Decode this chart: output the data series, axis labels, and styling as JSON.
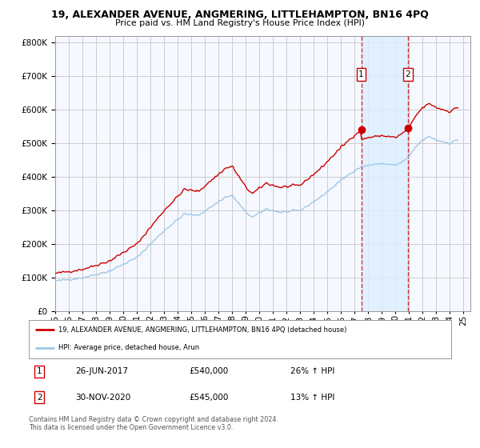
{
  "title": "19, ALEXANDER AVENUE, ANGMERING, LITTLEHAMPTON, BN16 4PQ",
  "subtitle": "Price paid vs. HM Land Registry's House Price Index (HPI)",
  "ylim": [
    0,
    820000
  ],
  "xlim_start": 1995.0,
  "xlim_end": 2025.5,
  "hpi_color": "#9ec8e8",
  "price_color": "#cc0000",
  "vline_color": "#cc0000",
  "vline_style": "--",
  "marker_color": "#cc0000",
  "sale1_x": 2017.48,
  "sale1_y": 540000,
  "sale1_label": "1",
  "sale2_x": 2020.91,
  "sale2_y": 545000,
  "sale2_label": "2",
  "shade_color": "#ddeeff",
  "legend_house_label": "19, ALEXANDER AVENUE, ANGMERING, LITTLEHAMPTON, BN16 4PQ (detached house)",
  "legend_hpi_label": "HPI: Average price, detached house, Arun",
  "table_row1": [
    "1",
    "26-JUN-2017",
    "£540,000",
    "26% ↑ HPI"
  ],
  "table_row2": [
    "2",
    "30-NOV-2020",
    "£545,000",
    "13% ↑ HPI"
  ],
  "footer": "Contains HM Land Registry data © Crown copyright and database right 2024.\nThis data is licensed under the Open Government Licence v3.0.",
  "bg_color": "#ffffff",
  "plot_bg_color": "#f5f8ff",
  "grid_color": "#cccccc",
  "xticks": [
    1995,
    1996,
    1997,
    1998,
    1999,
    2000,
    2001,
    2002,
    2003,
    2004,
    2005,
    2006,
    2007,
    2008,
    2009,
    2010,
    2011,
    2012,
    2013,
    2014,
    2015,
    2016,
    2017,
    2018,
    2019,
    2020,
    2021,
    2022,
    2023,
    2024,
    2025
  ],
  "yticks": [
    0,
    100000,
    200000,
    300000,
    400000,
    500000,
    600000,
    700000,
    800000
  ]
}
